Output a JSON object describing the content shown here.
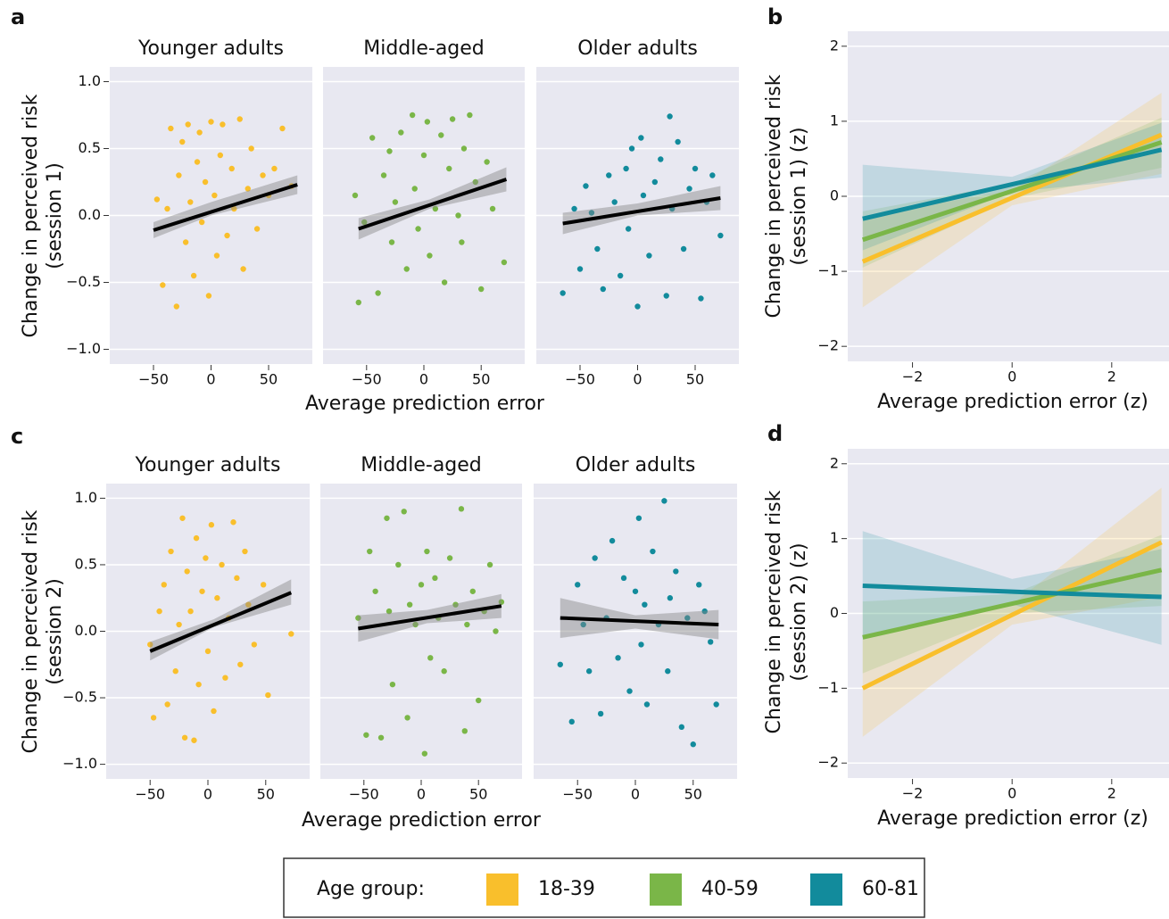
{
  "legend_title": "Age group:",
  "chart_data": [
    {
      "type": "scatter",
      "panel": "a",
      "xlabel": "Average prediction error",
      "ylabel": [
        "Change in perceived risk",
        "(session 1)"
      ],
      "xlim": [
        -88,
        88
      ],
      "ylim": [
        -1.11,
        1.11
      ],
      "grid": "y",
      "xticks": [
        {
          "value": -50,
          "label": "−50"
        },
        0,
        50
      ],
      "yticks": [
        {
          "value": -1,
          "label": "−1.0"
        },
        {
          "value": -0.5,
          "label": "−0.5"
        },
        {
          "value": 0,
          "label": "0.0"
        },
        0.5,
        {
          "value": 1,
          "label": "1.0"
        }
      ],
      "facets": [
        {
          "title": "Younger adults",
          "color": "#f9bf2c",
          "x": [
            -47,
            -42,
            -38,
            -35,
            -30,
            -28,
            -25,
            -22,
            -20,
            -18,
            -15,
            -12,
            -10,
            -8,
            -5,
            -2,
            0,
            3,
            5,
            8,
            10,
            14,
            18,
            20,
            25,
            28,
            32,
            35,
            40,
            45,
            50,
            55,
            62,
            70
          ],
          "y": [
            0.12,
            -0.52,
            0.05,
            0.65,
            -0.68,
            0.3,
            0.55,
            -0.2,
            0.68,
            0.1,
            -0.45,
            0.4,
            0.62,
            -0.05,
            0.25,
            -0.6,
            0.7,
            0.15,
            -0.3,
            0.45,
            0.68,
            -0.15,
            0.35,
            0.05,
            0.72,
            -0.4,
            0.2,
            0.5,
            -0.1,
            0.3,
            0.15,
            0.35,
            0.65,
            0.22
          ],
          "fit": {
            "x": [
              -50,
              75
            ],
            "y": [
              -0.11,
              0.23
            ]
          },
          "band": {
            "x": [
              -50,
              0,
              75
            ],
            "lower": [
              -0.17,
              0.0,
              0.16
            ],
            "upper": [
              -0.05,
              0.1,
              0.3
            ]
          }
        },
        {
          "title": "Middle-aged",
          "color": "#7ab648",
          "x": [
            -60,
            -57,
            -52,
            -45,
            -40,
            -35,
            -30,
            -28,
            -25,
            -20,
            -15,
            -10,
            -8,
            -5,
            0,
            3,
            5,
            10,
            15,
            18,
            22,
            25,
            30,
            33,
            35,
            40,
            45,
            50,
            55,
            60,
            70
          ],
          "y": [
            0.15,
            -0.65,
            -0.05,
            0.58,
            -0.58,
            0.3,
            0.48,
            -0.2,
            0.1,
            0.62,
            -0.4,
            0.75,
            0.2,
            -0.1,
            0.45,
            0.7,
            -0.3,
            0.05,
            0.6,
            -0.5,
            0.35,
            0.72,
            0.0,
            -0.2,
            0.5,
            0.75,
            0.25,
            -0.55,
            0.4,
            0.05,
            -0.35
          ],
          "fit": {
            "x": [
              -57,
              72
            ],
            "y": [
              -0.1,
              0.27
            ]
          },
          "band": {
            "x": [
              -57,
              5,
              72
            ],
            "lower": [
              -0.18,
              0.05,
              0.18
            ],
            "upper": [
              -0.02,
              0.12,
              0.36
            ]
          }
        },
        {
          "title": "Older adults",
          "color": "#128b9c",
          "x": [
            -65,
            -55,
            -50,
            -45,
            -40,
            -35,
            -30,
            -25,
            -20,
            -15,
            -10,
            -8,
            -5,
            0,
            3,
            5,
            10,
            15,
            20,
            25,
            28,
            30,
            35,
            40,
            45,
            50,
            55,
            60,
            65,
            72
          ],
          "y": [
            -0.58,
            0.05,
            -0.4,
            0.22,
            0.02,
            -0.25,
            -0.55,
            0.3,
            0.1,
            -0.45,
            0.35,
            -0.1,
            0.5,
            -0.68,
            0.58,
            0.15,
            -0.3,
            0.25,
            0.42,
            -0.6,
            0.74,
            0.05,
            0.55,
            -0.25,
            0.2,
            0.35,
            -0.62,
            0.1,
            0.3,
            -0.15
          ],
          "fit": {
            "x": [
              -65,
              72
            ],
            "y": [
              -0.06,
              0.13
            ]
          },
          "band": {
            "x": [
              -65,
              0,
              72
            ],
            "lower": [
              -0.14,
              0.0,
              0.04
            ],
            "upper": [
              0.02,
              0.09,
              0.22
            ]
          }
        }
      ]
    },
    {
      "type": "line",
      "panel": "b",
      "xlabel": "Average prediction error (z)",
      "ylabel": [
        "Change in perceived risk",
        "(session 1) (z)"
      ],
      "xlim": [
        -3.3,
        3.15
      ],
      "ylim": [
        -2.2,
        2.2
      ],
      "grid": "y",
      "xticks": [
        {
          "value": -2,
          "label": "−2"
        },
        0,
        2
      ],
      "yticks": [
        {
          "value": -2,
          "label": "−2"
        },
        {
          "value": -1,
          "label": "−1"
        },
        0,
        1,
        2
      ],
      "x": [
        -3,
        0,
        3
      ],
      "series": [
        {
          "name": "18-39",
          "color": "#f9bf2c",
          "values": [
            -0.87,
            -0.02,
            0.82
          ],
          "lower": [
            -1.48,
            -0.12,
            0.3
          ],
          "upper": [
            -0.27,
            0.08,
            1.38
          ]
        },
        {
          "name": "40-59",
          "color": "#7ab648",
          "values": [
            -0.58,
            0.07,
            0.72
          ],
          "lower": [
            -0.95,
            -0.03,
            0.38
          ],
          "upper": [
            -0.2,
            0.17,
            1.05
          ]
        },
        {
          "name": "60-81",
          "color": "#128b9c",
          "values": [
            -0.3,
            0.16,
            0.62
          ],
          "lower": [
            -0.72,
            0.06,
            0.25
          ],
          "upper": [
            0.42,
            0.26,
            0.98
          ]
        }
      ]
    },
    {
      "type": "scatter",
      "panel": "c",
      "xlabel": "Average prediction error",
      "ylabel": [
        "Change in perceived risk",
        "(session 2)"
      ],
      "xlim": [
        -88,
        88
      ],
      "ylim": [
        -1.11,
        1.11
      ],
      "grid": "y",
      "xticks": [
        {
          "value": -50,
          "label": "−50"
        },
        0,
        50
      ],
      "yticks": [
        {
          "value": -1,
          "label": "−1.0"
        },
        {
          "value": -0.5,
          "label": "−0.5"
        },
        {
          "value": 0,
          "label": "0.0"
        },
        0.5,
        {
          "value": 1,
          "label": "1.0"
        }
      ],
      "facets": [
        {
          "title": "Younger adults",
          "color": "#f9bf2c",
          "x": [
            -50,
            -47,
            -42,
            -38,
            -35,
            -32,
            -28,
            -25,
            -22,
            -20,
            -18,
            -15,
            -12,
            -10,
            -8,
            -5,
            -2,
            0,
            3,
            5,
            8,
            12,
            15,
            18,
            22,
            25,
            28,
            32,
            35,
            40,
            48,
            52,
            72
          ],
          "y": [
            -0.1,
            -0.65,
            0.15,
            0.35,
            -0.55,
            0.6,
            -0.3,
            0.05,
            0.85,
            -0.8,
            0.45,
            0.15,
            -0.82,
            0.7,
            -0.4,
            0.3,
            0.55,
            -0.15,
            0.8,
            -0.6,
            0.25,
            0.5,
            -0.35,
            0.1,
            0.82,
            0.4,
            -0.25,
            0.6,
            0.2,
            -0.1,
            0.35,
            -0.48,
            -0.02
          ],
          "fit": {
            "x": [
              -50,
              72
            ],
            "y": [
              -0.15,
              0.29
            ]
          },
          "band": {
            "x": [
              -50,
              5,
              72
            ],
            "lower": [
              -0.22,
              0.03,
              0.2
            ],
            "upper": [
              -0.08,
              0.09,
              0.39
            ]
          }
        },
        {
          "title": "Middle-aged",
          "color": "#7ab648",
          "x": [
            -55,
            -48,
            -45,
            -40,
            -35,
            -30,
            -28,
            -25,
            -20,
            -15,
            -12,
            -10,
            -5,
            0,
            3,
            5,
            8,
            12,
            15,
            20,
            25,
            30,
            35,
            38,
            40,
            45,
            50,
            55,
            60,
            65,
            70
          ],
          "y": [
            0.1,
            -0.78,
            0.6,
            0.3,
            -0.8,
            0.85,
            0.15,
            -0.4,
            0.5,
            0.9,
            -0.65,
            0.2,
            0.05,
            0.35,
            -0.92,
            0.6,
            -0.2,
            0.4,
            0.1,
            -0.3,
            0.55,
            0.2,
            0.92,
            -0.75,
            0.05,
            0.3,
            -0.52,
            0.15,
            0.5,
            0.0,
            0.22
          ],
          "fit": {
            "x": [
              -55,
              70
            ],
            "y": [
              0.02,
              0.19
            ]
          },
          "band": {
            "x": [
              -55,
              5,
              70
            ],
            "lower": [
              -0.08,
              0.06,
              0.1
            ],
            "upper": [
              0.12,
              0.16,
              0.28
            ]
          }
        },
        {
          "title": "Older adults",
          "color": "#128b9c",
          "x": [
            -65,
            -55,
            -50,
            -45,
            -40,
            -35,
            -30,
            -25,
            -20,
            -15,
            -10,
            -5,
            0,
            3,
            5,
            8,
            10,
            15,
            20,
            25,
            28,
            30,
            35,
            40,
            45,
            50,
            55,
            60,
            65,
            70
          ],
          "y": [
            -0.25,
            -0.68,
            0.35,
            0.05,
            -0.3,
            0.55,
            -0.62,
            0.1,
            0.68,
            -0.2,
            0.4,
            -0.45,
            0.3,
            0.85,
            -0.1,
            0.2,
            -0.55,
            0.6,
            0.05,
            0.98,
            -0.3,
            0.25,
            0.45,
            -0.72,
            0.1,
            -0.85,
            0.35,
            0.15,
            -0.08,
            -0.55
          ],
          "fit": {
            "x": [
              -65,
              72
            ],
            "y": [
              0.1,
              0.05
            ]
          },
          "band": {
            "x": [
              -65,
              0,
              72
            ],
            "lower": [
              -0.05,
              0.02,
              -0.06
            ],
            "upper": [
              0.25,
              0.12,
              0.16
            ]
          }
        }
      ]
    },
    {
      "type": "line",
      "panel": "d",
      "xlabel": "Average prediction error (z)",
      "ylabel": [
        "Change in perceived risk",
        "(session 2) (z)"
      ],
      "xlim": [
        -3.3,
        3.15
      ],
      "ylim": [
        -2.2,
        2.2
      ],
      "grid": "y",
      "xticks": [
        {
          "value": -2,
          "label": "−2"
        },
        0,
        2
      ],
      "yticks": [
        {
          "value": -2,
          "label": "−2"
        },
        {
          "value": -1,
          "label": "−1"
        },
        0,
        1,
        2
      ],
      "x": [
        -3,
        0,
        3
      ],
      "series": [
        {
          "name": "18-39",
          "color": "#f9bf2c",
          "values": [
            -1.0,
            -0.02,
            0.95
          ],
          "lower": [
            -1.65,
            -0.15,
            0.22
          ],
          "upper": [
            -0.35,
            0.12,
            1.68
          ]
        },
        {
          "name": "40-59",
          "color": "#7ab648",
          "values": [
            -0.32,
            0.13,
            0.58
          ],
          "lower": [
            -0.8,
            0.0,
            0.1
          ],
          "upper": [
            0.16,
            0.26,
            1.05
          ]
        },
        {
          "name": "60-81",
          "color": "#128b9c",
          "values": [
            0.37,
            0.29,
            0.22
          ],
          "lower": [
            -0.35,
            0.12,
            -0.42
          ],
          "upper": [
            1.1,
            0.46,
            0.86
          ]
        }
      ]
    }
  ]
}
